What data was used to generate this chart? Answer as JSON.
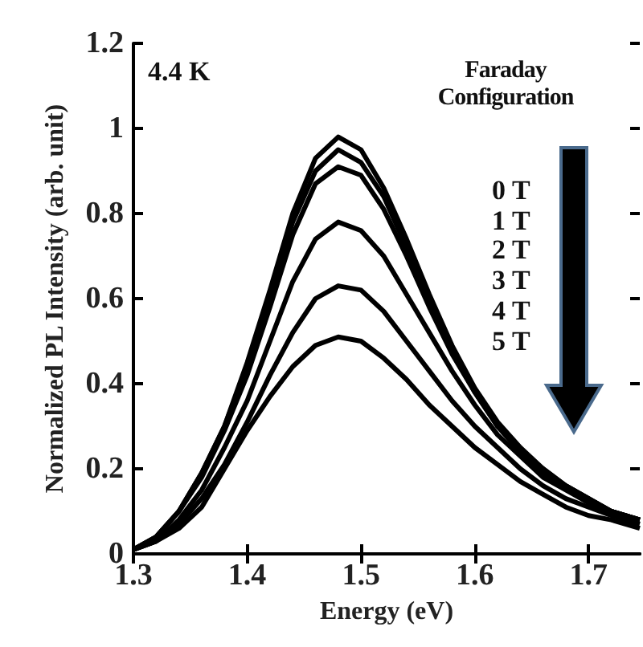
{
  "chart_data": {
    "type": "line",
    "xlabel": "Energy (eV)",
    "ylabel": "Normalized PL Intensity (arb. unit)",
    "annotations": [
      "4.4 K",
      "Faraday Configuration",
      "0 T",
      "1 T",
      "2 T",
      "3 T",
      "4 T",
      "5 T"
    ],
    "x": [
      1.3,
      1.32,
      1.34,
      1.36,
      1.38,
      1.4,
      1.42,
      1.44,
      1.46,
      1.48,
      1.5,
      1.52,
      1.54,
      1.56,
      1.58,
      1.6,
      1.62,
      1.64,
      1.66,
      1.68,
      1.7,
      1.72,
      1.745
    ],
    "series": [
      {
        "color": "#000000",
        "values": [
          0.01,
          0.04,
          0.1,
          0.19,
          0.3,
          0.45,
          0.62,
          0.8,
          0.93,
          0.98,
          0.95,
          0.86,
          0.74,
          0.61,
          0.49,
          0.39,
          0.31,
          0.25,
          0.2,
          0.16,
          0.13,
          0.1,
          0.08
        ]
      },
      {
        "color": "#000000",
        "values": [
          0.01,
          0.04,
          0.1,
          0.19,
          0.3,
          0.44,
          0.61,
          0.78,
          0.9,
          0.95,
          0.92,
          0.84,
          0.72,
          0.6,
          0.48,
          0.38,
          0.3,
          0.24,
          0.2,
          0.16,
          0.13,
          0.1,
          0.08
        ]
      },
      {
        "color": "#000000",
        "values": [
          0.01,
          0.04,
          0.1,
          0.18,
          0.29,
          0.42,
          0.58,
          0.75,
          0.87,
          0.91,
          0.89,
          0.81,
          0.7,
          0.58,
          0.47,
          0.38,
          0.3,
          0.24,
          0.19,
          0.16,
          0.13,
          0.1,
          0.08
        ]
      },
      {
        "color": "#000000",
        "values": [
          0.01,
          0.03,
          0.08,
          0.15,
          0.25,
          0.36,
          0.5,
          0.64,
          0.74,
          0.78,
          0.76,
          0.7,
          0.61,
          0.52,
          0.43,
          0.35,
          0.28,
          0.23,
          0.18,
          0.15,
          0.12,
          0.1,
          0.08
        ]
      },
      {
        "color": "#000000",
        "values": [
          0.01,
          0.03,
          0.07,
          0.13,
          0.21,
          0.31,
          0.42,
          0.52,
          0.6,
          0.63,
          0.62,
          0.57,
          0.5,
          0.43,
          0.36,
          0.3,
          0.25,
          0.2,
          0.16,
          0.13,
          0.11,
          0.09,
          0.07
        ]
      },
      {
        "color": "#000000",
        "values": [
          0.01,
          0.03,
          0.06,
          0.11,
          0.2,
          0.29,
          0.37,
          0.44,
          0.49,
          0.51,
          0.5,
          0.46,
          0.41,
          0.35,
          0.3,
          0.25,
          0.21,
          0.17,
          0.14,
          0.11,
          0.09,
          0.08,
          0.06
        ]
      }
    ],
    "xlim": [
      1.3,
      1.745
    ],
    "xticks": [
      1.3,
      1.4,
      1.5,
      1.6,
      1.7
    ],
    "ylim": [
      0,
      1.2
    ],
    "yticks": [
      0,
      0.2,
      0.4,
      0.6,
      0.8,
      1,
      1.2
    ],
    "grid": false,
    "marker": "none",
    "line_style": "solid"
  }
}
